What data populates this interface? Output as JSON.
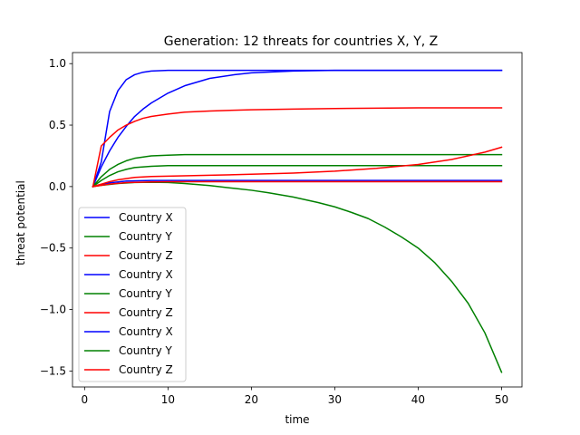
{
  "chart_data": {
    "type": "line",
    "title": "Generation: 12 threats for countries X, Y, Z",
    "xlabel": "time",
    "ylabel": "threat potential",
    "xlim": [
      -1.45,
      52.45
    ],
    "ylim": [
      -1.63,
      1.09
    ],
    "xticks": [
      0,
      10,
      20,
      30,
      40,
      50
    ],
    "yticks": [
      -1.5,
      -1.0,
      -0.5,
      0.0,
      0.5,
      1.0
    ],
    "ytick_labels": [
      "−1.5",
      "−1.0",
      "−0.5",
      "0.0",
      "0.5",
      "1.0"
    ],
    "grid": false,
    "legend_position": "lower-left",
    "colors": {
      "X": "#0000ff",
      "Y": "#008000",
      "Z": "#ff0000"
    },
    "legend": [
      {
        "label": "Country X",
        "color": "#0000ff"
      },
      {
        "label": "Country Y",
        "color": "#008000"
      },
      {
        "label": "Country Z",
        "color": "#ff0000"
      },
      {
        "label": "Country X",
        "color": "#0000ff"
      },
      {
        "label": "Country Y",
        "color": "#008000"
      },
      {
        "label": "Country Z",
        "color": "#ff0000"
      },
      {
        "label": "Country X",
        "color": "#0000ff"
      },
      {
        "label": "Country Y",
        "color": "#008000"
      },
      {
        "label": "Country Z",
        "color": "#ff0000"
      }
    ],
    "series": [
      {
        "color": "#0000ff",
        "x": [
          1,
          2,
          3,
          4,
          5,
          6,
          7,
          8,
          10,
          12,
          15,
          20,
          30,
          40,
          50
        ],
        "y": [
          0.0,
          0.2,
          0.61,
          0.78,
          0.87,
          0.91,
          0.93,
          0.94,
          0.945,
          0.945,
          0.945,
          0.945,
          0.945,
          0.945,
          0.945
        ]
      },
      {
        "color": "#0000ff",
        "x": [
          1,
          2,
          3,
          4,
          5,
          6,
          7,
          8,
          10,
          12,
          15,
          18,
          20,
          25,
          30,
          40,
          50
        ],
        "y": [
          0.0,
          0.16,
          0.29,
          0.4,
          0.49,
          0.57,
          0.63,
          0.68,
          0.76,
          0.82,
          0.88,
          0.91,
          0.925,
          0.94,
          0.945,
          0.945,
          0.945
        ]
      },
      {
        "color": "#0000ff",
        "x": [
          1,
          3,
          5,
          8,
          10,
          15,
          20,
          30,
          40,
          50
        ],
        "y": [
          0.0,
          0.03,
          0.045,
          0.05,
          0.05,
          0.05,
          0.05,
          0.05,
          0.05,
          0.05
        ]
      },
      {
        "color": "#008000",
        "x": [
          1,
          2,
          3,
          4,
          5,
          6,
          8,
          10,
          12,
          15,
          20,
          30,
          40,
          50
        ],
        "y": [
          0.0,
          0.08,
          0.14,
          0.18,
          0.21,
          0.23,
          0.25,
          0.255,
          0.26,
          0.26,
          0.26,
          0.26,
          0.26,
          0.26
        ]
      },
      {
        "color": "#008000",
        "x": [
          1,
          2,
          3,
          4,
          5,
          6,
          8,
          10,
          12,
          15,
          20,
          30,
          40,
          50
        ],
        "y": [
          0.0,
          0.05,
          0.09,
          0.12,
          0.14,
          0.155,
          0.165,
          0.17,
          0.17,
          0.17,
          0.17,
          0.17,
          0.17,
          0.17
        ]
      },
      {
        "color": "#008000",
        "x": [
          1,
          2,
          4,
          6,
          8,
          10,
          12,
          15,
          18,
          20,
          22,
          25,
          28,
          30,
          32,
          34,
          36,
          38,
          40,
          42,
          44,
          46,
          48,
          50
        ],
        "y": [
          0.0,
          0.01,
          0.025,
          0.033,
          0.035,
          0.033,
          0.025,
          0.008,
          -0.015,
          -0.03,
          -0.05,
          -0.085,
          -0.13,
          -0.165,
          -0.21,
          -0.26,
          -0.33,
          -0.41,
          -0.5,
          -0.62,
          -0.77,
          -0.95,
          -1.19,
          -1.51
        ]
      },
      {
        "color": "#ff0000",
        "x": [
          1,
          2,
          3,
          4,
          5,
          6,
          7,
          8,
          10,
          12,
          15,
          20,
          25,
          30,
          40,
          50
        ],
        "y": [
          0.0,
          0.33,
          0.4,
          0.46,
          0.5,
          0.53,
          0.555,
          0.57,
          0.59,
          0.605,
          0.615,
          0.625,
          0.63,
          0.635,
          0.64,
          0.64
        ]
      },
      {
        "color": "#ff0000",
        "x": [
          1,
          2,
          3,
          4,
          6,
          8,
          10,
          15,
          20,
          25,
          30,
          35,
          40,
          44,
          48,
          50
        ],
        "y": [
          0.0,
          0.02,
          0.04,
          0.055,
          0.075,
          0.082,
          0.085,
          0.092,
          0.1,
          0.11,
          0.125,
          0.148,
          0.18,
          0.22,
          0.28,
          0.32
        ]
      },
      {
        "color": "#ff0000",
        "x": [
          1,
          3,
          5,
          8,
          10,
          15,
          20,
          30,
          40,
          50
        ],
        "y": [
          0.0,
          0.02,
          0.032,
          0.038,
          0.04,
          0.04,
          0.04,
          0.04,
          0.04,
          0.04
        ]
      }
    ]
  }
}
